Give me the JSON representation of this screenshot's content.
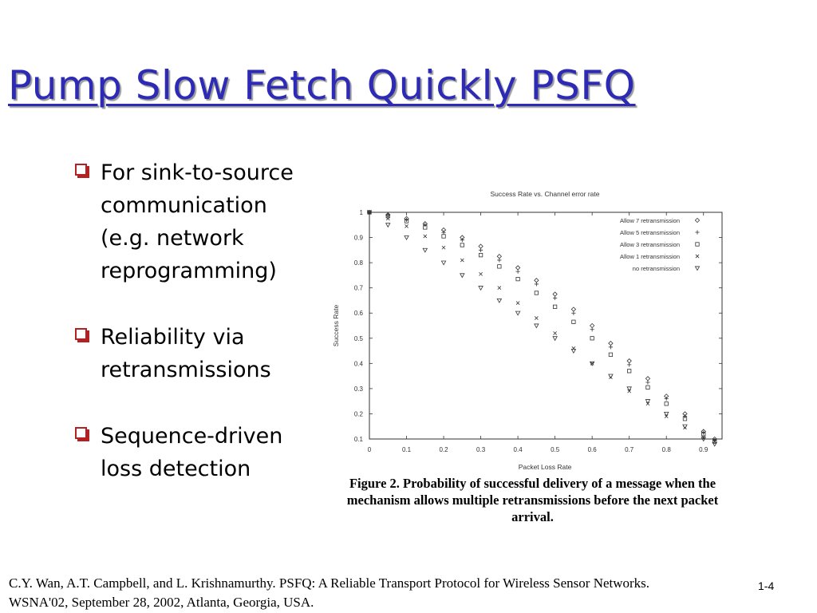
{
  "slide": {
    "title": "Pump Slow Fetch Quickly PSFQ",
    "bullets": [
      "For sink-to-source communication (e.g. network reprogramming)",
      "Reliability via retransmissions",
      "Sequence-driven loss detection"
    ],
    "figure_caption": "Figure 2. Probability of successful delivery of a message when the mechanism allows multiple retransmissions before the next packet arrival.",
    "citation_line1": "C.Y. Wan, A.T. Campbell, and L. Krishnamurthy. PSFQ: A Reliable Transport Protocol for Wireless Sensor Networks.",
    "citation_line2": "WSNA'02, September 28, 2002, Atlanta, Georgia, USA.",
    "page_number": "1-4",
    "colors": {
      "title": "#2d2ab5",
      "bullet": "#b22222",
      "chart_ink": "#333333"
    }
  },
  "chart_data": {
    "type": "scatter",
    "title": "Success Rate vs. Channel error rate",
    "xlabel": "Packet Loss Rate",
    "ylabel": "Success Rate",
    "xlim": [
      0,
      0.95
    ],
    "ylim": [
      0.1,
      1
    ],
    "xticks": [
      "0",
      "0.1",
      "0.2",
      "0.3",
      "0.4",
      "0.5",
      "0.6",
      "0.7",
      "0.8",
      "0.9"
    ],
    "yticks": [
      "0.1",
      "0.2",
      "0.3",
      "0.4",
      "0.5",
      "0.6",
      "0.7",
      "0.8",
      "0.9",
      "1"
    ],
    "legend_position": "top-right",
    "grid": false,
    "x": [
      0,
      0.05,
      0.1,
      0.15,
      0.2,
      0.25,
      0.3,
      0.35,
      0.4,
      0.45,
      0.5,
      0.55,
      0.6,
      0.65,
      0.7,
      0.75,
      0.8,
      0.85,
      0.9,
      0.93
    ],
    "series": [
      {
        "name": "Allow 7 retransmission",
        "marker": "diamond",
        "values": [
          1.0,
          0.99,
          0.975,
          0.955,
          0.93,
          0.9,
          0.865,
          0.825,
          0.78,
          0.73,
          0.675,
          0.615,
          0.55,
          0.48,
          0.41,
          0.34,
          0.27,
          0.2,
          0.13,
          0.1
        ]
      },
      {
        "name": "Allow 5 retransmission",
        "marker": "plus",
        "values": [
          1.0,
          0.99,
          0.97,
          0.95,
          0.92,
          0.89,
          0.85,
          0.81,
          0.765,
          0.715,
          0.66,
          0.6,
          0.535,
          0.465,
          0.395,
          0.325,
          0.26,
          0.19,
          0.125,
          0.095
        ]
      },
      {
        "name": "Allow 3 retransmission",
        "marker": "square",
        "values": [
          1.0,
          0.985,
          0.965,
          0.94,
          0.905,
          0.87,
          0.83,
          0.785,
          0.735,
          0.68,
          0.625,
          0.565,
          0.5,
          0.435,
          0.37,
          0.305,
          0.24,
          0.18,
          0.12,
          0.09
        ]
      },
      {
        "name": "Allow 1 retransmission",
        "marker": "cross",
        "values": [
          1.0,
          0.975,
          0.945,
          0.905,
          0.86,
          0.81,
          0.755,
          0.7,
          0.64,
          0.58,
          0.52,
          0.46,
          0.4,
          0.345,
          0.29,
          0.24,
          0.19,
          0.145,
          0.105,
          0.09
        ]
      },
      {
        "name": "no retransmission",
        "marker": "triangle",
        "values": [
          1.0,
          0.95,
          0.9,
          0.85,
          0.8,
          0.75,
          0.7,
          0.65,
          0.6,
          0.55,
          0.5,
          0.45,
          0.4,
          0.35,
          0.3,
          0.25,
          0.2,
          0.15,
          0.1,
          0.08
        ]
      }
    ]
  }
}
